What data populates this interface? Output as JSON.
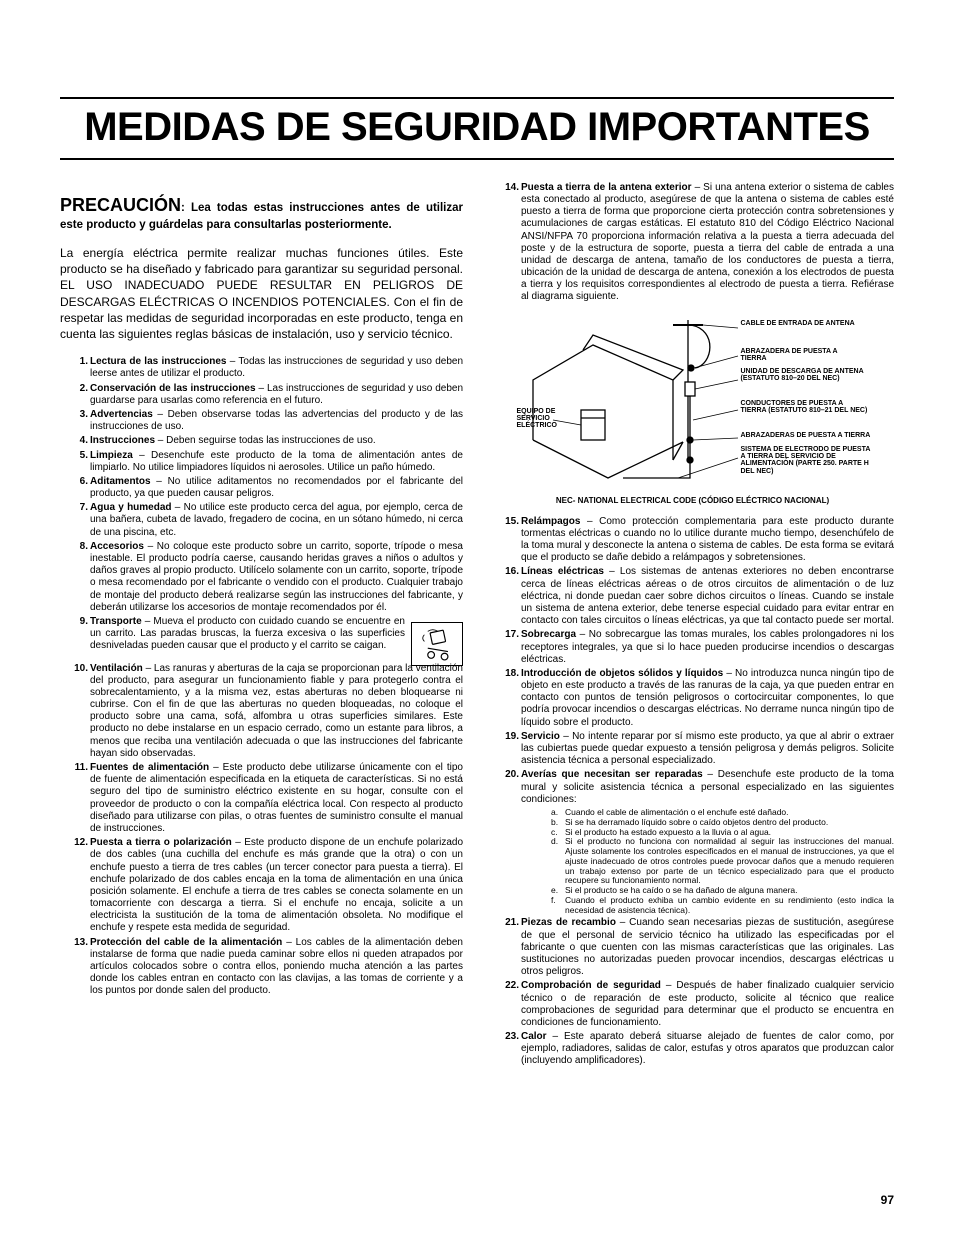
{
  "page": {
    "title": "MEDIDAS DE SEGURIDAD IMPORTANTES",
    "number": "97"
  },
  "precaucion": {
    "lead": "PRECAUCIÓN",
    "rest": ": Lea todas estas instrucciones antes de utilizar este producto y guárdelas para consultarlas posteriormente."
  },
  "intro": "La energía eléctrica permite realizar muchas funciones útiles. Este producto se ha diseñado y fabricado para garantizar su seguridad personal. EL USO INADECUADO PUEDE RESULTAR EN PELIGROS DE DESCARGAS ELÉCTRICAS O INCENDIOS POTENCIALES. Con el fin de respetar las medidas de seguridad incorporadas en este producto, tenga en cuenta las siguientes reglas básicas de instalación, uso y servicio técnico.",
  "left_items": [
    {
      "title": "Lectura de las instrucciones",
      "body": " – Todas las instrucciones de seguridad y uso deben leerse antes de utilizar el producto."
    },
    {
      "title": "Conservación de las instrucciones",
      "body": " – Las instrucciones de seguridad y uso deben guardarse para usarlas como referencia en el futuro."
    },
    {
      "title": "Advertencias",
      "body": " – Deben observarse todas las advertencias del producto y de las instrucciones de uso."
    },
    {
      "title": "Instrucciones",
      "body": " – Deben seguirse todas las instrucciones de uso."
    },
    {
      "title": "Limpieza",
      "body": " – Desenchufe este producto de la toma de alimentación antes de limpiarlo. No utilice limpiadores líquidos ni aerosoles. Utilice un paño húmedo."
    },
    {
      "title": "Aditamentos",
      "body": " – No utilice aditamentos no recomendados por el fabricante del producto, ya que pueden causar peligros."
    },
    {
      "title": "Agua y humedad",
      "body": " – No utilice este producto cerca del agua, por ejemplo, cerca de una bañera, cubeta de lavado, fregadero de cocina, en un sótano húmedo, ni cerca de una piscina, etc."
    },
    {
      "title": "Accesorios",
      "body": " – No coloque este producto sobre un carrito, soporte, trípode o mesa inestable. El producto podría caerse, causando heridas graves a niños o adultos y daños graves al propio producto. Utilícelo solamente con un carrito, soporte, trípode o mesa recomendado por el fabricante o vendido con el producto. Cualquier trabajo de montaje del producto deberá realizarse según las instrucciones del fabricante, y deberán utilizarse los accesorios de montaje recomendados por él."
    },
    {
      "title": "Transporte",
      "body": " – Mueva el producto con cuidado cuando se encuentre en un carrito. Las paradas bruscas, la fuerza excesiva o las superficies desniveladas pueden causar que el producto y el carrito se caigan.",
      "cls": "item9"
    },
    {
      "title": "Ventilación",
      "body": " – Las ranuras y aberturas de la caja se proporcionan para la ventilación del producto, para asegurar un funcionamiento fiable y para protegerlo contra el sobrecalentamiento, y a la misma vez, estas aberturas no deben bloquearse ni cubrirse. Con el fin de que las aberturas no queden bloqueadas, no coloque el producto sobre una cama, sofá, alfombra u otras superficies similares. Este producto no debe instalarse en un espacio cerrado, como un estante para libros, a menos que reciba una ventilación adecuada o que las instrucciones del fabricante hayan sido observadas.",
      "cls": "two-digit"
    },
    {
      "title": "Fuentes de alimentación",
      "body": " – Este producto debe utilizarse únicamente con el tipo de fuente de alimentación especificada en la etiqueta de características. Si no está seguro del tipo de suministro eléctrico existente en su hogar, consulte con el proveedor de producto o con la compañía eléctrica local. Con respecto al producto diseñado para utilizarse con pilas, o otras fuentes de suministro consulte el manual de instrucciones.",
      "cls": "two-digit"
    },
    {
      "title": "Puesta a tierra o polarización",
      "body": " – Este producto dispone de un enchufe polarizado de dos cables (una cuchilla del enchufe es más grande que la otra) o con un enchufe puesto a tierra de tres cables (un tercer conector para puesta a tierra). El enchufe polarizado de dos cables encaja en la toma de alimentación en una única posición solamente. El enchufe a tierra de tres cables se conecta solamente en un tomacorriente con descarga a tierra. Si el enchufe no encaja, solicite a un electricista la sustitución de la toma de alimentación obsoleta. No modifique el enchufe y respete esta medida de seguridad.",
      "cls": "two-digit"
    },
    {
      "title": "Protección del cable de la alimentación",
      "body": " – Los cables de la alimentación deben instalarse de forma que nadie pueda caminar sobre ellos ni queden atrapados por artículos colocados sobre o contra ellos, poniendo mucha atención a las partes donde los cables entran en contacto con las clavijas, a las tomas de corriente y a los puntos por donde salen del producto.",
      "cls": "two-digit"
    }
  ],
  "item14": {
    "title": "Puesta a tierra de la antena exterior",
    "body": " – Si una antena exterior o sistema de cables esta conectado al producto, asegúrese de que la antena o sistema de cables esté puesto a tierra de forma que proporcione cierta protección contra sobretensiones y acumulaciones de cargas estáticas. El estatuto 810 del Código Eléctrico Nacional ANSI/NFPA 70 proporciona información relativa a la puesta a tierra adecuada del poste y de la estructura de soporte, puesta a tierra del cable de entrada a una unidad de descarga de antena, tamaño de los conductores de puesta a tierra, ubicación de la unidad de descarga de antena, conexión a los electrodos de puesta a tierra y los requisitos correspondientes al electrodo de puesta a tierra. Refiérase al diagrama siguiente."
  },
  "diagram_labels": {
    "lead_in": "CABLE DE ENTRADA DE ANTENA",
    "ground_clamp": "ABRAZADERA DE PUESTA A TIERRA",
    "discharge_unit": "UNIDAD DE DESCARGA DE ANTENA (ESTATUTO 810–20 DEL NEC)",
    "ground_conductors": "CONDUCTORES DE PUESTA A TIERRA (ESTATUTO 810–21 DEL NEC)",
    "ground_clamps": "ABRAZADERAS DE PUESTA A TIERRA",
    "electric_service": "EQUIPO DE SERVICIO ELÉCTRICO",
    "electrode_system": "SISTEMA DE ELECTRODO DE PUESTA A TIERRA DEL SERVICIO DE ALIMENTACIÓN (PARTE 250. PARTE H DEL NEC)",
    "nec_caption": "NEC- NATIONAL ELECTRICAL CODE (CÓDIGO ELÉCTRICO NACIONAL)"
  },
  "right_items": [
    {
      "title": "Relámpagos",
      "body": " – Como protección complementaria para este producto durante tormentas eléctricas o cuando no lo utilice durante mucho tiempo, desenchúfelo de la toma mural y desconecte la antena o sistema de cables. De esta forma se evitará que el producto se dañe debido a relámpagos y sobretensiones."
    },
    {
      "title": "Líneas eléctricas",
      "body": " – Los sistemas de antenas exteriores no deben encontrarse cerca de líneas eléctricas aéreas o de otros circuitos de alimentación o de luz eléctrica, ni donde puedan caer sobre dichos circuitos o líneas. Cuando se instale un sistema de antena exterior, debe tenerse especial cuidado para evitar entrar en contacto con tales circuitos o líneas eléctricas, ya que tal contacto puede ser mortal."
    },
    {
      "title": "Sobrecarga",
      "body": " – No sobrecargue las tomas murales, los cables prolongadores ni los receptores integrales, ya que si lo hace pueden producirse incendios o descargas eléctricas."
    },
    {
      "title": "Introducción de objetos sólidos y líquidos",
      "body": " – No introduzca nunca ningún tipo de objeto en este producto a través de las ranuras de la caja, ya que pueden entrar en contacto con puntos de tensión peligrosos o cortocircuitar componentes, lo que podría provocar incendios o descargas eléctricas. No derrame nunca ningún tipo de líquido sobre el producto."
    },
    {
      "title": "Servicio",
      "body": " – No intente reparar por sí mismo este producto, ya que al abrir o extraer las cubiertas puede quedar expuesto a tensión peligrosa y demás peligros. Solicite asistencia técnica a personal especializado."
    },
    {
      "title": "Averías que necesitan ser reparadas",
      "body": " – Desenchufe este producto de la toma mural y solicite asistencia técnica a personal especializado en las siguientes condiciones:",
      "sub": [
        "Cuando el cable de alimentación o el enchufe esté dañado.",
        "Si se ha derramado líquido sobre o caído objetos dentro del producto.",
        "Si el producto ha estado expuesto a la lluvia o al agua.",
        "Si el producto no funciona con normalidad al seguir las instrucciones del manual. Ajuste solamente los controles especificados en el manual de instrucciones, ya que el ajuste inadecuado de otros controles puede provocar daños que a menudo requieren un trabajo extenso por parte de un técnico especializado para que el producto recupere su funcionamiento normal.",
        "Si el producto se ha caído o se ha dañado de alguna manera.",
        "Cuando el producto exhiba un cambio evidente en su rendimiento (esto indica la necesidad de asistencia técnica)."
      ]
    },
    {
      "title": "Piezas de recambio",
      "body": " – Cuando sean necesarias piezas de sustitución, asegúrese de que el personal de servicio técnico ha utilizado las especificadas por el fabricante o que cuenten con las mismas características que las originales. Las sustituciones no autorizadas pueden provocar incendios, descargas eléctricas u otros peligros."
    },
    {
      "title": "Comprobación de seguridad",
      "body": " – Después de haber finalizado cualquier servicio técnico o de reparación de este producto, solicite al técnico que realice comprobaciones de seguridad para determinar que el producto se encuentra en condiciones de funcionamiento."
    },
    {
      "title": "Calor",
      "body": " – Este aparato deberá situarse alejado de fuentes de calor como, por ejemplo, radiadores, salidas de calor, estufas y otros aparatos que produzcan calor (incluyendo amplificadores)."
    }
  ]
}
